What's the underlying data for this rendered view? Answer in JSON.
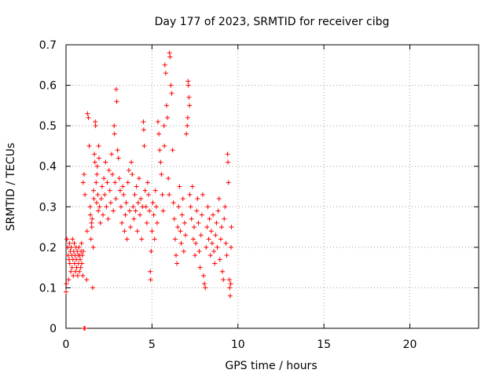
{
  "chart_data": {
    "type": "scatter",
    "title": "Day 177 of 2023, SRMTID for receiver cibg",
    "xlabel": "GPS time / hours",
    "ylabel": "SRMTID / TECUs",
    "xlim": [
      0,
      24
    ],
    "ylim": [
      0,
      0.7
    ],
    "xticks": [
      0,
      5,
      10,
      15,
      20
    ],
    "yticks": [
      0,
      0.1,
      0.2,
      0.3,
      0.4,
      0.5,
      0.6,
      0.7
    ],
    "x_tick_labels": [
      "0",
      "5",
      "10",
      "15",
      "20"
    ],
    "y_tick_labels": [
      "0",
      "0.1",
      "0.2",
      "0.3",
      "0.4",
      "0.5",
      "0.6",
      "0.7"
    ],
    "grid": true,
    "marker": "+",
    "series": [
      {
        "name": "SRMTID",
        "color": "#ff0000",
        "points": [
          [
            0.0,
            0.09
          ],
          [
            0.02,
            0.11
          ],
          [
            0.05,
            0.22
          ],
          [
            0.1,
            0.2
          ],
          [
            0.12,
            0.18
          ],
          [
            0.15,
            0.12
          ],
          [
            0.18,
            0.17
          ],
          [
            0.2,
            0.21
          ],
          [
            0.22,
            0.16
          ],
          [
            0.25,
            0.19
          ],
          [
            0.28,
            0.14
          ],
          [
            0.3,
            0.2
          ],
          [
            0.33,
            0.18
          ],
          [
            0.35,
            0.15
          ],
          [
            0.38,
            0.22
          ],
          [
            0.4,
            0.17
          ],
          [
            0.42,
            0.13
          ],
          [
            0.45,
            0.19
          ],
          [
            0.48,
            0.21
          ],
          [
            0.5,
            0.16
          ],
          [
            0.52,
            0.18
          ],
          [
            0.55,
            0.14
          ],
          [
            0.58,
            0.2
          ],
          [
            0.6,
            0.17
          ],
          [
            0.62,
            0.15
          ],
          [
            0.65,
            0.19
          ],
          [
            0.68,
            0.13
          ],
          [
            0.7,
            0.18
          ],
          [
            0.72,
            0.16
          ],
          [
            0.75,
            0.2
          ],
          [
            0.78,
            0.14
          ],
          [
            0.8,
            0.18
          ],
          [
            0.82,
            0.17
          ],
          [
            0.85,
            0.15
          ],
          [
            0.88,
            0.19
          ],
          [
            0.9,
            0.21
          ],
          [
            0.92,
            0.16
          ],
          [
            0.95,
            0.18
          ],
          [
            0.98,
            0.13
          ],
          [
            1.0,
            0.19
          ],
          [
            1.05,
            0.0
          ],
          [
            1.1,
            0.0
          ],
          [
            1.0,
            0.36
          ],
          [
            1.05,
            0.38
          ],
          [
            1.1,
            0.33
          ],
          [
            1.2,
            0.12
          ],
          [
            1.22,
            0.24
          ],
          [
            1.25,
            0.53
          ],
          [
            1.3,
            0.52
          ],
          [
            1.35,
            0.45
          ],
          [
            1.4,
            0.3
          ],
          [
            1.42,
            0.28
          ],
          [
            1.45,
            0.22
          ],
          [
            1.48,
            0.26
          ],
          [
            1.5,
            0.25
          ],
          [
            1.52,
            0.27
          ],
          [
            1.55,
            0.1
          ],
          [
            1.58,
            0.2
          ],
          [
            1.6,
            0.34
          ],
          [
            1.62,
            0.32
          ],
          [
            1.65,
            0.43
          ],
          [
            1.68,
            0.41
          ],
          [
            1.7,
            0.51
          ],
          [
            1.72,
            0.5
          ],
          [
            1.75,
            0.36
          ],
          [
            1.78,
            0.31
          ],
          [
            1.8,
            0.38
          ],
          [
            1.82,
            0.4
          ],
          [
            1.85,
            0.33
          ],
          [
            1.88,
            0.29
          ],
          [
            1.9,
            0.45
          ],
          [
            1.92,
            0.42
          ],
          [
            1.95,
            0.3
          ],
          [
            2.0,
            0.26
          ],
          [
            2.05,
            0.32
          ],
          [
            2.1,
            0.35
          ],
          [
            2.15,
            0.28
          ],
          [
            2.2,
            0.37
          ],
          [
            2.25,
            0.33
          ],
          [
            2.3,
            0.41
          ],
          [
            2.35,
            0.3
          ],
          [
            2.4,
            0.36
          ],
          [
            2.45,
            0.27
          ],
          [
            2.5,
            0.39
          ],
          [
            2.55,
            0.34
          ],
          [
            2.6,
            0.31
          ],
          [
            2.65,
            0.43
          ],
          [
            2.7,
            0.38
          ],
          [
            2.75,
            0.29
          ],
          [
            2.8,
            0.5
          ],
          [
            2.82,
            0.48
          ],
          [
            2.85,
            0.36
          ],
          [
            2.9,
            0.32
          ],
          [
            2.92,
            0.59
          ],
          [
            2.95,
            0.56
          ],
          [
            3.0,
            0.44
          ],
          [
            3.05,
            0.42
          ],
          [
            3.1,
            0.37
          ],
          [
            3.15,
            0.34
          ],
          [
            3.2,
            0.3
          ],
          [
            3.25,
            0.26
          ],
          [
            3.3,
            0.35
          ],
          [
            3.35,
            0.33
          ],
          [
            3.4,
            0.24
          ],
          [
            3.45,
            0.28
          ],
          [
            3.5,
            0.31
          ],
          [
            3.55,
            0.22
          ],
          [
            3.6,
            0.36
          ],
          [
            3.65,
            0.39
          ],
          [
            3.7,
            0.29
          ],
          [
            3.75,
            0.25
          ],
          [
            3.8,
            0.41
          ],
          [
            3.85,
            0.38
          ],
          [
            3.9,
            0.3
          ],
          [
            3.95,
            0.27
          ],
          [
            4.0,
            0.33
          ],
          [
            4.05,
            0.29
          ],
          [
            4.1,
            0.35
          ],
          [
            4.15,
            0.24
          ],
          [
            4.2,
            0.31
          ],
          [
            4.25,
            0.37
          ],
          [
            4.3,
            0.28
          ],
          [
            4.35,
            0.32
          ],
          [
            4.4,
            0.22
          ],
          [
            4.45,
            0.3
          ],
          [
            4.5,
            0.51
          ],
          [
            4.52,
            0.49
          ],
          [
            4.55,
            0.45
          ],
          [
            4.6,
            0.34
          ],
          [
            4.65,
            0.3
          ],
          [
            4.7,
            0.26
          ],
          [
            4.75,
            0.36
          ],
          [
            4.8,
            0.33
          ],
          [
            4.85,
            0.29
          ],
          [
            4.9,
            0.14
          ],
          [
            4.92,
            0.12
          ],
          [
            4.95,
            0.19
          ],
          [
            5.0,
            0.24
          ],
          [
            5.05,
            0.31
          ],
          [
            5.1,
            0.28
          ],
          [
            5.15,
            0.22
          ],
          [
            5.2,
            0.34
          ],
          [
            5.25,
            0.3
          ],
          [
            5.3,
            0.26
          ],
          [
            5.35,
            0.51
          ],
          [
            5.4,
            0.48
          ],
          [
            5.45,
            0.44
          ],
          [
            5.5,
            0.41
          ],
          [
            5.55,
            0.38
          ],
          [
            5.6,
            0.33
          ],
          [
            5.65,
            0.29
          ],
          [
            5.7,
            0.5
          ],
          [
            5.72,
            0.45
          ],
          [
            5.75,
            0.65
          ],
          [
            5.8,
            0.63
          ],
          [
            5.85,
            0.55
          ],
          [
            5.9,
            0.52
          ],
          [
            5.95,
            0.37
          ],
          [
            6.0,
            0.33
          ],
          [
            6.02,
            0.68
          ],
          [
            6.05,
            0.67
          ],
          [
            6.1,
            0.6
          ],
          [
            6.15,
            0.58
          ],
          [
            6.2,
            0.44
          ],
          [
            6.25,
            0.31
          ],
          [
            6.3,
            0.27
          ],
          [
            6.35,
            0.22
          ],
          [
            6.4,
            0.18
          ],
          [
            6.45,
            0.16
          ],
          [
            6.5,
            0.25
          ],
          [
            6.55,
            0.3
          ],
          [
            6.6,
            0.35
          ],
          [
            6.65,
            0.24
          ],
          [
            6.7,
            0.21
          ],
          [
            6.75,
            0.28
          ],
          [
            6.8,
            0.32
          ],
          [
            6.85,
            0.19
          ],
          [
            6.9,
            0.26
          ],
          [
            6.95,
            0.23
          ],
          [
            7.0,
            0.48
          ],
          [
            7.05,
            0.5
          ],
          [
            7.08,
            0.52
          ],
          [
            7.1,
            0.61
          ],
          [
            7.12,
            0.6
          ],
          [
            7.15,
            0.57
          ],
          [
            7.18,
            0.55
          ],
          [
            7.2,
            0.33
          ],
          [
            7.25,
            0.3
          ],
          [
            7.3,
            0.27
          ],
          [
            7.35,
            0.35
          ],
          [
            7.4,
            0.22
          ],
          [
            7.45,
            0.25
          ],
          [
            7.5,
            0.18
          ],
          [
            7.55,
            0.21
          ],
          [
            7.6,
            0.29
          ],
          [
            7.65,
            0.32
          ],
          [
            7.7,
            0.26
          ],
          [
            7.75,
            0.19
          ],
          [
            7.8,
            0.15
          ],
          [
            7.85,
            0.23
          ],
          [
            7.9,
            0.28
          ],
          [
            7.95,
            0.33
          ],
          [
            8.0,
            0.13
          ],
          [
            8.05,
            0.11
          ],
          [
            8.1,
            0.1
          ],
          [
            8.15,
            0.2
          ],
          [
            8.2,
            0.25
          ],
          [
            8.25,
            0.3
          ],
          [
            8.3,
            0.22
          ],
          [
            8.35,
            0.27
          ],
          [
            8.4,
            0.18
          ],
          [
            8.45,
            0.24
          ],
          [
            8.5,
            0.21
          ],
          [
            8.55,
            0.28
          ],
          [
            8.6,
            0.19
          ],
          [
            8.65,
            0.16
          ],
          [
            8.7,
            0.23
          ],
          [
            8.75,
            0.26
          ],
          [
            8.8,
            0.2
          ],
          [
            8.85,
            0.29
          ],
          [
            8.9,
            0.32
          ],
          [
            8.95,
            0.17
          ],
          [
            9.0,
            0.22
          ],
          [
            9.05,
            0.25
          ],
          [
            9.1,
            0.14
          ],
          [
            9.15,
            0.12
          ],
          [
            9.2,
            0.27
          ],
          [
            9.25,
            0.3
          ],
          [
            9.3,
            0.21
          ],
          [
            9.35,
            0.18
          ],
          [
            9.4,
            0.43
          ],
          [
            9.42,
            0.41
          ],
          [
            9.45,
            0.36
          ],
          [
            9.5,
            0.12
          ],
          [
            9.52,
            0.1
          ],
          [
            9.55,
            0.08
          ],
          [
            9.58,
            0.11
          ],
          [
            9.6,
            0.2
          ],
          [
            9.62,
            0.25
          ]
        ]
      }
    ]
  }
}
